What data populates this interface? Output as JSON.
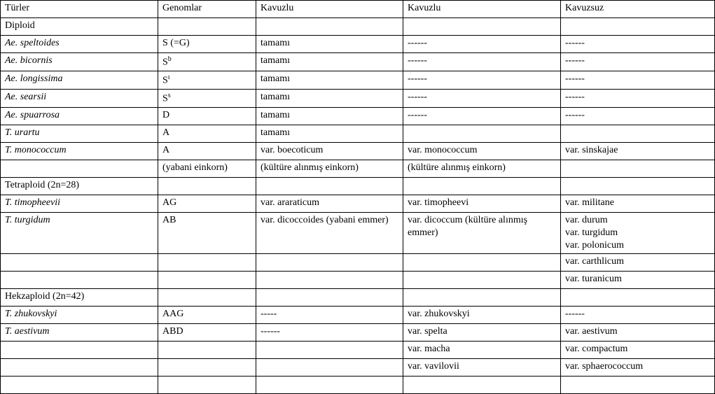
{
  "header": {
    "c1": "Türler",
    "c2": "Genomlar",
    "c3": "Kavuzlu",
    "c4": "Kavuzlu",
    "c5": "Kavuzsuz"
  },
  "rows": [
    {
      "c1": "Diploid",
      "i1": false,
      "c2": "",
      "c3": "",
      "c4": "",
      "c5": ""
    },
    {
      "c1": "Ae. speltoides",
      "i1": true,
      "c2": "S (=G)",
      "c3": "tamamı",
      "c4": "------",
      "c5": "------"
    },
    {
      "c1": "Ae. bicornis",
      "i1": true,
      "c2_html": "S<sup>b</sup>",
      "c3": "tamamı",
      "c4": "------",
      "c5": "------"
    },
    {
      "c1": "Ae. longissima",
      "i1": true,
      "c2_html": "S<sup>ı</sup>",
      "c3": "tamamı",
      "c4": "------",
      "c5": "------"
    },
    {
      "c1": "Ae. searsii",
      "i1": true,
      "c2_html": "S<sup>s</sup>",
      "c3": "tamamı",
      "c4": "------",
      "c5": "------"
    },
    {
      "c1": "Ae. spuarrosa",
      "i1": true,
      "c2": "D",
      "c3": "tamamı",
      "c4": "------",
      "c5": "------"
    },
    {
      "c1": "T. urartu",
      "i1": true,
      "c2": "A",
      "c3": "tamamı",
      "c4": "",
      "c5": ""
    },
    {
      "c1": "T. monococcum",
      "i1": true,
      "c2": "A",
      "c3": "var. boecoticum",
      "c4": "var. monococcum",
      "c5": "var. sinskajae"
    },
    {
      "c1": "",
      "i1": false,
      "c2": "(yabani einkorn)",
      "c3": "(kültüre alınmış einkorn)",
      "c4": "(kültüre alınmış einkorn)",
      "c5": ""
    },
    {
      "c1": "Tetraploid (2n=28)",
      "i1": false,
      "c2": "",
      "c3": "",
      "c4": "",
      "c5": ""
    },
    {
      "c1": "T. timopheevii",
      "i1": true,
      "c2": "AG",
      "c3": "var. araraticum",
      "c4": "var. timopheevi",
      "c5": "var. militane"
    },
    {
      "c1": "T. turgidum",
      "i1": true,
      "c2": "AB",
      "c3": "var. dicoccoides (yabani emmer)",
      "c4": "var. dicoccum (kültüre alınmış emmer)",
      "c5": "var. durum\nvar. turgidum\nvar. polonicum"
    },
    {
      "c1": "",
      "i1": false,
      "c2": "",
      "c3": "",
      "c4": "",
      "c5": "var. carthlicum"
    },
    {
      "c1": "",
      "i1": false,
      "c2": "",
      "c3": "",
      "c4": "",
      "c5": "var. turanicum"
    },
    {
      "c1": "Hekzaploid (2n=42)",
      "i1": false,
      "c2": "",
      "c3": "",
      "c4": "",
      "c5": ""
    },
    {
      "c1": "T. zhukovskyi",
      "i1": true,
      "c2": "AAG",
      "c3": "-----",
      "c4": "var. zhukovskyi",
      "c5": "------"
    },
    {
      "c1": "T. aestivum",
      "i1": true,
      "c2": "ABD",
      "c3": "------",
      "c4": "var. spelta",
      "c5": "var. aestivum"
    },
    {
      "c1": "",
      "i1": false,
      "c2": "",
      "c3": "",
      "c4": "var. macha",
      "c5": "var. compactum"
    },
    {
      "c1": "",
      "i1": false,
      "c2": "",
      "c3": "",
      "c4": "var. vavilovii",
      "c5": "var. sphaerococcum"
    },
    {
      "c1": "",
      "i1": false,
      "c2": "",
      "c3": "",
      "c4": "",
      "c5": ""
    }
  ]
}
